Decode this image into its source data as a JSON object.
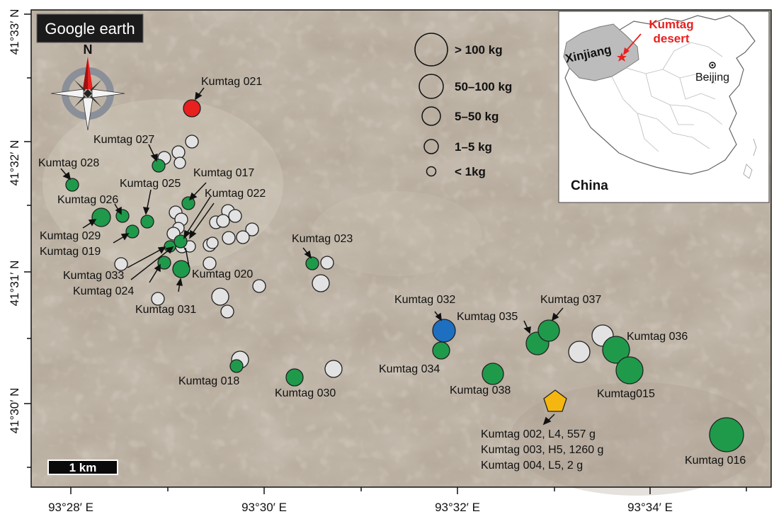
{
  "brand": {
    "logo_text": "Google earth"
  },
  "compass": {
    "north_label": "N"
  },
  "axes": {
    "x_ticks": [
      "93°28′ E",
      "93°30′ E",
      "93°32′ E",
      "93°34′ E"
    ],
    "y_ticks": [
      "41°33′ N",
      "41°32′ N",
      "41°31′ N",
      "41°30′ N"
    ]
  },
  "scale_bar": {
    "label": "1 km"
  },
  "legend": {
    "items": [
      {
        "label": "> 100 kg"
      },
      {
        "label": "50–100 kg"
      },
      {
        "label": "5–50 kg"
      },
      {
        "label": "1–5 kg"
      },
      {
        "label": "< 1kg"
      }
    ]
  },
  "inset": {
    "country": "China",
    "region": "Xinjiang",
    "desert_line1": "Kumtag",
    "desert_line2": "desert",
    "capital": "Beijing"
  },
  "labels": [
    {
      "text": "Kumtag 021"
    },
    {
      "text": "Kumtag 027"
    },
    {
      "text": "Kumtag 028"
    },
    {
      "text": "Kumtag 025"
    },
    {
      "text": "Kumtag 017"
    },
    {
      "text": "Kumtag 026"
    },
    {
      "text": "Kumtag 022"
    },
    {
      "text": "Kumtag 029"
    },
    {
      "text": "Kumtag 019"
    },
    {
      "text": "Kumtag 033"
    },
    {
      "text": "Kumtag 024"
    },
    {
      "text": "Kumtag 020"
    },
    {
      "text": "Kumtag 031"
    },
    {
      "text": "Kumtag 023"
    },
    {
      "text": "Kumtag 032"
    },
    {
      "text": "Kumtag 035"
    },
    {
      "text": "Kumtag 037"
    },
    {
      "text": "Kumtag 036"
    },
    {
      "text": "Kumtag 034"
    },
    {
      "text": "Kumtag 018"
    },
    {
      "text": "Kumtag 030"
    },
    {
      "text": "Kumtag 038"
    },
    {
      "text": "Kumtag015"
    },
    {
      "text": "Kumtag 016"
    }
  ],
  "paired_note": {
    "lines": [
      "Kumtag 002, L4, 557 g",
      "Kumtag 003, H5, 1260 g",
      "Kumtag 004, L5, 2 g"
    ]
  },
  "colors": {
    "classified": "#1f9a4b",
    "unclassified": "#e2e2e2",
    "kumtag021": "#e8201f",
    "kumtag032": "#1e6fc0",
    "paired": "#f5b70f",
    "inset_accent": "#e8201f"
  }
}
